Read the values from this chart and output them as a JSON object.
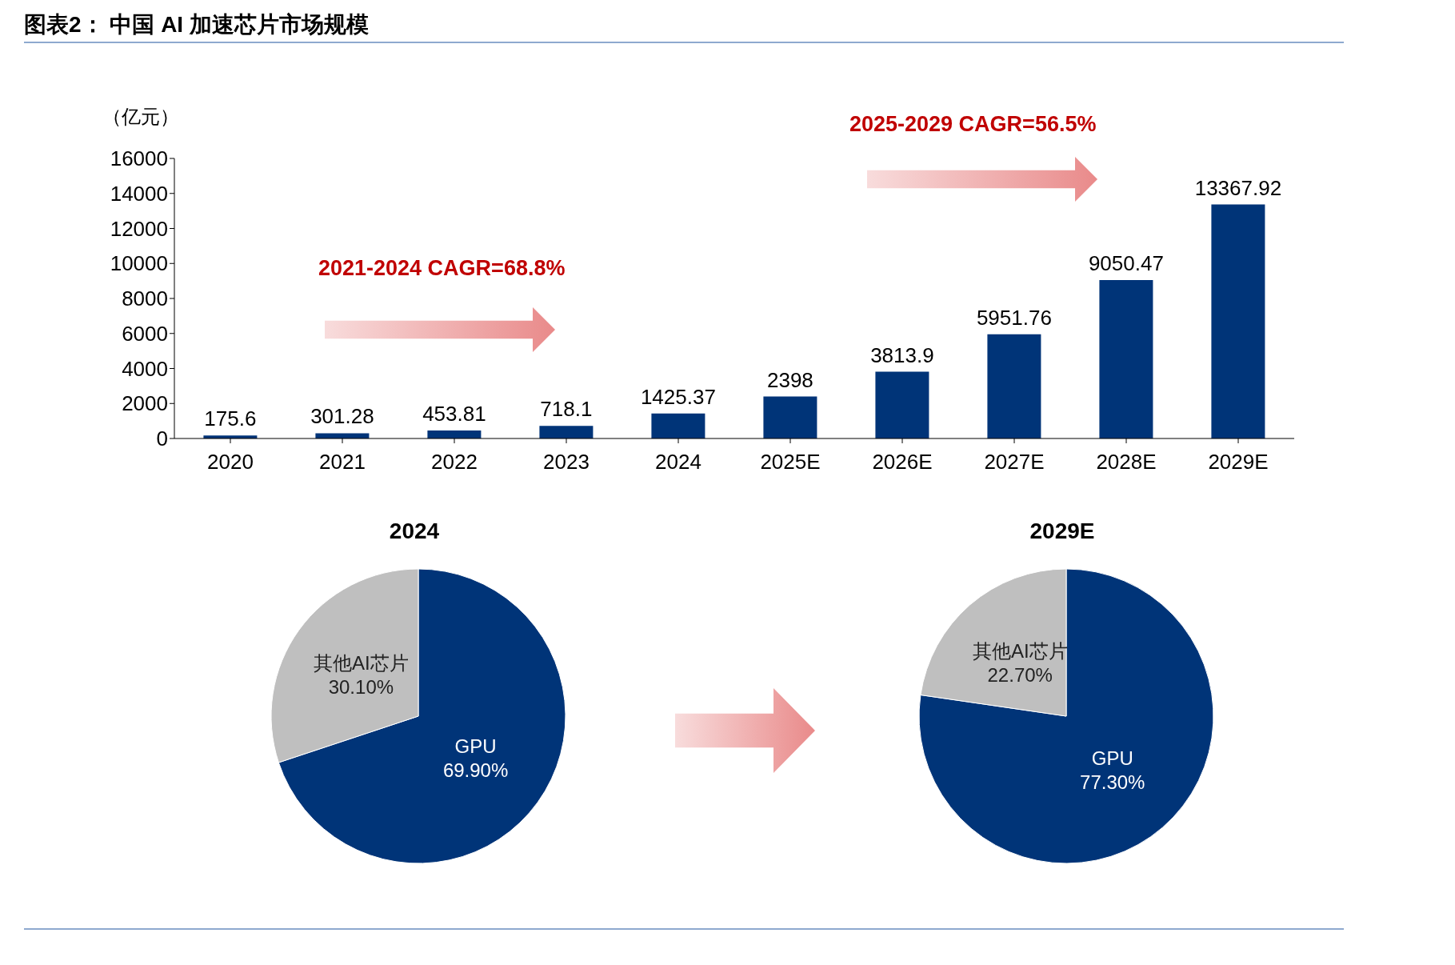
{
  "chart_data": [
    {
      "type": "bar",
      "title": "图表2： 中国 AI 加速芯片市场规模",
      "ylabel": "（亿元）",
      "annotations": [
        "2021-2024 CAGR=68.8%",
        "2025-2029 CAGR=56.5%"
      ],
      "categories": [
        "2020",
        "2021",
        "2022",
        "2023",
        "2024",
        "2025E",
        "2026E",
        "2027E",
        "2028E",
        "2029E"
      ],
      "values": [
        175.6,
        301.28,
        453.81,
        718.1,
        1425.37,
        2398,
        3813.9,
        5951.76,
        9050.47,
        13367.92
      ],
      "color": "#003478",
      "ylim": [
        0,
        16000
      ],
      "yticks": [
        0,
        2000,
        4000,
        6000,
        8000,
        10000,
        12000,
        14000,
        16000
      ],
      "data_labels": true
    },
    {
      "type": "pie",
      "title": "2024",
      "categories": [
        "GPU",
        "其他AI芯片"
      ],
      "values": [
        69.9,
        30.1
      ],
      "colors": [
        "#003478",
        "#bfbfbf"
      ],
      "value_labels": [
        "69.90%",
        "30.10%"
      ]
    },
    {
      "type": "pie",
      "title": "2029E",
      "categories": [
        "GPU",
        "其他AI芯片"
      ],
      "values": [
        77.3,
        22.7
      ],
      "colors": [
        "#003478",
        "#bfbfbf"
      ],
      "value_labels": [
        "77.30%",
        "22.70%"
      ]
    }
  ]
}
